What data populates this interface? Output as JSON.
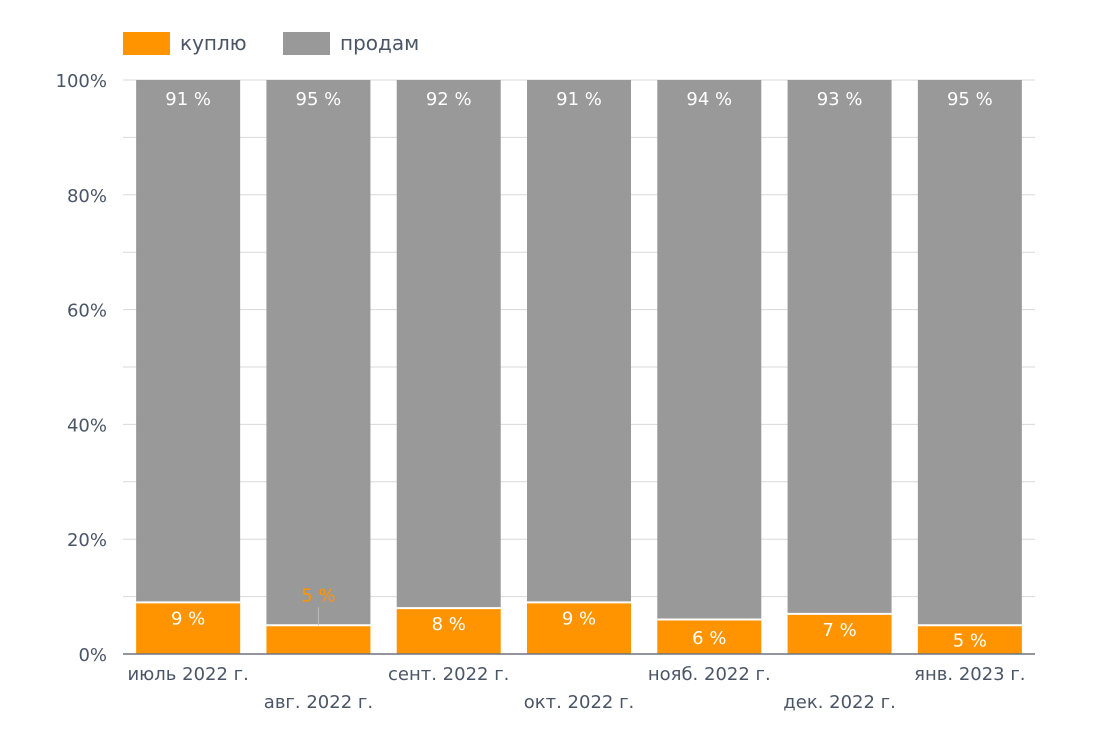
{
  "legend": {
    "buy_label": "куплю",
    "sell_label": "продам"
  },
  "colors": {
    "buy": "#FF9400",
    "sell": "#999999",
    "axis_text": "#4a5566",
    "grid": "#d9d9d9"
  },
  "chart_data": {
    "type": "bar",
    "stacked": true,
    "stack_mode": "percent",
    "categories": [
      "июль 2022 г.",
      "авг. 2022 г.",
      "сент. 2022 г.",
      "окт. 2022 г.",
      "нояб. 2022 г.",
      "дек. 2022 г.",
      "янв. 2023 г."
    ],
    "series": [
      {
        "name": "куплю",
        "values": [
          9,
          5,
          8,
          9,
          6,
          7,
          5
        ],
        "labels": [
          "9 %",
          "5 %",
          "8 %",
          "9 %",
          "6 %",
          "7 %",
          "5 %"
        ]
      },
      {
        "name": "продам",
        "values": [
          91,
          95,
          92,
          91,
          94,
          93,
          95
        ],
        "labels": [
          "91 %",
          "95 %",
          "92 %",
          "91 %",
          "94 %",
          "93 %",
          "95 %"
        ]
      }
    ],
    "y_ticks": [
      "0%",
      "20%",
      "40%",
      "60%",
      "80%",
      "100%"
    ],
    "ylim": [
      0,
      100
    ],
    "grid": true,
    "legend_position": "top-left"
  }
}
